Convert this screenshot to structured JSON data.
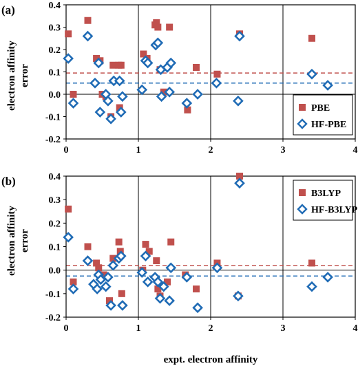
{
  "colors": {
    "red": "#c0504d",
    "blue": "#1f6bb5",
    "frame": "#000000",
    "grid": "#000000"
  },
  "x_axis_label": "expt. electron affinity",
  "chart_data": [
    {
      "type": "scatter",
      "panel_label": "(a)",
      "ylabel_lines": [
        "electron affinity",
        "error"
      ],
      "xlim": [
        0,
        4
      ],
      "ylim": [
        -0.2,
        0.4
      ],
      "xticks": [
        0,
        1,
        2,
        3,
        4
      ],
      "yticks": [
        -0.2,
        -0.1,
        0.0,
        0.1,
        0.2,
        0.3,
        0.4
      ],
      "ytick_labels": [
        "-0.2",
        "-0.1",
        "0.0",
        "0.1",
        "0.2",
        "0.3",
        "0.4"
      ],
      "grid": "vertical lines at x = 1, 2, 3 only",
      "legend_position": "lower-right",
      "reference_lines": [
        {
          "y": 0.095,
          "color": "red",
          "style": "dashed"
        },
        {
          "y": 0.05,
          "color": "blue",
          "style": "dashed"
        }
      ],
      "zero_line": true,
      "series": [
        {
          "name": "PBE",
          "marker": "square",
          "color": "red",
          "points": [
            [
              0.03,
              0.27
            ],
            [
              0.1,
              0.0
            ],
            [
              0.3,
              0.33
            ],
            [
              0.42,
              0.16
            ],
            [
              0.47,
              0.15
            ],
            [
              0.5,
              0.0
            ],
            [
              0.55,
              -0.01
            ],
            [
              0.65,
              0.13
            ],
            [
              0.73,
              0.13
            ],
            [
              0.76,
              0.13
            ],
            [
              0.74,
              -0.06
            ],
            [
              1.07,
              0.18
            ],
            [
              1.12,
              0.16
            ],
            [
              1.23,
              0.31
            ],
            [
              1.25,
              0.32
            ],
            [
              1.27,
              0.3
            ],
            [
              1.3,
              0.11
            ],
            [
              1.43,
              0.3
            ],
            [
              1.8,
              0.12
            ],
            [
              2.09,
              0.09
            ],
            [
              2.4,
              0.27
            ],
            [
              3.4,
              0.25
            ],
            [
              1.68,
              -0.07
            ],
            [
              1.35,
              0.01
            ],
            [
              0.62,
              -0.1
            ]
          ]
        },
        {
          "name": "HF-PBE",
          "marker": "diamond",
          "color": "blue",
          "points": [
            [
              0.03,
              0.16
            ],
            [
              0.1,
              -0.04
            ],
            [
              0.3,
              0.26
            ],
            [
              0.4,
              0.05
            ],
            [
              0.45,
              0.14
            ],
            [
              0.47,
              -0.08
            ],
            [
              0.55,
              0.0
            ],
            [
              0.58,
              -0.03
            ],
            [
              0.62,
              -0.11
            ],
            [
              0.66,
              0.06
            ],
            [
              0.74,
              0.06
            ],
            [
              0.76,
              -0.08
            ],
            [
              0.78,
              -0.01
            ],
            [
              1.05,
              0.02
            ],
            [
              1.1,
              0.15
            ],
            [
              1.13,
              0.14
            ],
            [
              1.24,
              0.22
            ],
            [
              1.27,
              0.23
            ],
            [
              1.31,
              0.11
            ],
            [
              1.4,
              0.12
            ],
            [
              1.45,
              0.14
            ],
            [
              1.32,
              -0.01
            ],
            [
              1.43,
              0.01
            ],
            [
              1.67,
              -0.04
            ],
            [
              1.82,
              0.0
            ],
            [
              2.08,
              0.05
            ],
            [
              2.38,
              -0.03
            ],
            [
              2.4,
              0.26
            ],
            [
              3.4,
              0.09
            ],
            [
              3.62,
              0.04
            ]
          ]
        }
      ]
    },
    {
      "type": "scatter",
      "panel_label": "(b)",
      "ylabel_lines": [
        "electron affinity",
        "error"
      ],
      "xlabel": "expt. electron affinity",
      "xlim": [
        0,
        4
      ],
      "ylim": [
        -0.2,
        0.4
      ],
      "xticks": [
        0,
        1,
        2,
        3,
        4
      ],
      "yticks": [
        -0.2,
        -0.1,
        0.0,
        0.1,
        0.2,
        0.3,
        0.4
      ],
      "ytick_labels": [
        "-0.2",
        "-0.1",
        "0.0",
        "0.1",
        "0.2",
        "0.3",
        "0.4"
      ],
      "grid": "vertical lines at x = 1, 2, 3 only",
      "legend_position": "upper-right",
      "reference_lines": [
        {
          "y": 0.02,
          "color": "red",
          "style": "dashed"
        },
        {
          "y": -0.025,
          "color": "blue",
          "style": "dashed"
        }
      ],
      "zero_line": true,
      "series": [
        {
          "name": "B3LYP",
          "marker": "square",
          "color": "red",
          "points": [
            [
              0.03,
              0.26
            ],
            [
              0.1,
              -0.05
            ],
            [
              0.3,
              0.1
            ],
            [
              0.42,
              0.03
            ],
            [
              0.45,
              0.01
            ],
            [
              0.6,
              -0.13
            ],
            [
              0.65,
              0.05
            ],
            [
              0.73,
              0.12
            ],
            [
              0.75,
              0.08
            ],
            [
              0.77,
              -0.1
            ],
            [
              1.1,
              0.11
            ],
            [
              1.15,
              0.08
            ],
            [
              1.25,
              0.04
            ],
            [
              1.27,
              -0.08
            ],
            [
              1.3,
              -0.11
            ],
            [
              1.4,
              -0.05
            ],
            [
              1.45,
              0.12
            ],
            [
              1.8,
              -0.08
            ],
            [
              2.09,
              0.03
            ],
            [
              2.4,
              0.4
            ],
            [
              3.4,
              0.03
            ],
            [
              2.38,
              -0.11
            ],
            [
              1.65,
              -0.02
            ],
            [
              0.52,
              -0.02
            ],
            [
              1.06,
              0.0
            ]
          ]
        },
        {
          "name": "HF-B3LYP",
          "marker": "diamond",
          "color": "blue",
          "points": [
            [
              0.03,
              0.14
            ],
            [
              0.1,
              -0.08
            ],
            [
              0.3,
              0.04
            ],
            [
              0.38,
              -0.06
            ],
            [
              0.43,
              -0.08
            ],
            [
              0.45,
              -0.02
            ],
            [
              0.48,
              -0.04
            ],
            [
              0.55,
              -0.07
            ],
            [
              0.62,
              -0.15
            ],
            [
              0.65,
              0.02
            ],
            [
              0.73,
              0.05
            ],
            [
              0.76,
              0.06
            ],
            [
              0.78,
              -0.15
            ],
            [
              1.05,
              -0.01
            ],
            [
              1.1,
              0.06
            ],
            [
              1.13,
              -0.05
            ],
            [
              1.23,
              -0.03
            ],
            [
              1.27,
              -0.05
            ],
            [
              1.3,
              -0.12
            ],
            [
              1.35,
              -0.07
            ],
            [
              1.43,
              -0.13
            ],
            [
              1.45,
              0.01
            ],
            [
              1.67,
              -0.03
            ],
            [
              1.82,
              -0.16
            ],
            [
              2.09,
              0.01
            ],
            [
              2.38,
              -0.11
            ],
            [
              2.4,
              0.37
            ],
            [
              3.4,
              -0.07
            ],
            [
              3.62,
              -0.03
            ],
            [
              0.58,
              -0.03
            ]
          ]
        }
      ]
    }
  ]
}
